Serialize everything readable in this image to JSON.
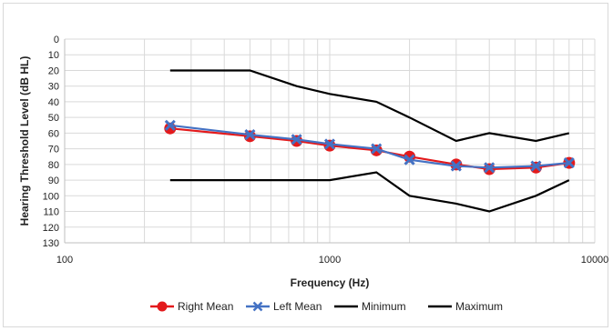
{
  "chart_data": {
    "type": "line",
    "title": "",
    "xlabel": "Frequency (Hz)",
    "ylabel": "Hearing Threshold Level (dB HL)",
    "x_scale": "log",
    "xlim": [
      100,
      10000
    ],
    "x_ticks": [
      "100",
      "1000",
      "10000"
    ],
    "ylim": [
      0,
      130
    ],
    "y_inverted": true,
    "y_ticks": [
      "0",
      "10",
      "20",
      "30",
      "40",
      "50",
      "60",
      "70",
      "80",
      "90",
      "100",
      "110",
      "120",
      "130"
    ],
    "grid": true,
    "legend_position": "bottom",
    "series": [
      {
        "name": "Right Mean",
        "color": "#e31a1c",
        "marker": "circle",
        "x": [
          250,
          500,
          750,
          1000,
          1500,
          2000,
          3000,
          4000,
          6000,
          8000
        ],
        "y": [
          57,
          62,
          65,
          68,
          71,
          75,
          80,
          83,
          82,
          79
        ]
      },
      {
        "name": "Left Mean",
        "color": "#4472c4",
        "marker": "x",
        "x": [
          250,
          500,
          750,
          1000,
          1500,
          2000,
          3000,
          4000,
          6000,
          8000
        ],
        "y": [
          55,
          61,
          64,
          67,
          70,
          77,
          81,
          82,
          81,
          79
        ]
      },
      {
        "name": "Minimum",
        "color": "#000000",
        "marker": "none",
        "x": [
          250,
          500,
          750,
          1000,
          1500,
          2000,
          3000,
          4000,
          6000,
          8000
        ],
        "y": [
          20,
          20,
          30,
          35,
          40,
          50,
          65,
          60,
          65,
          60
        ]
      },
      {
        "name": "Maximum",
        "color": "#000000",
        "marker": "none",
        "x": [
          250,
          500,
          750,
          1000,
          1500,
          2000,
          3000,
          4000,
          6000,
          8000
        ],
        "y": [
          90,
          90,
          90,
          90,
          85,
          100,
          105,
          110,
          100,
          90
        ]
      }
    ]
  }
}
